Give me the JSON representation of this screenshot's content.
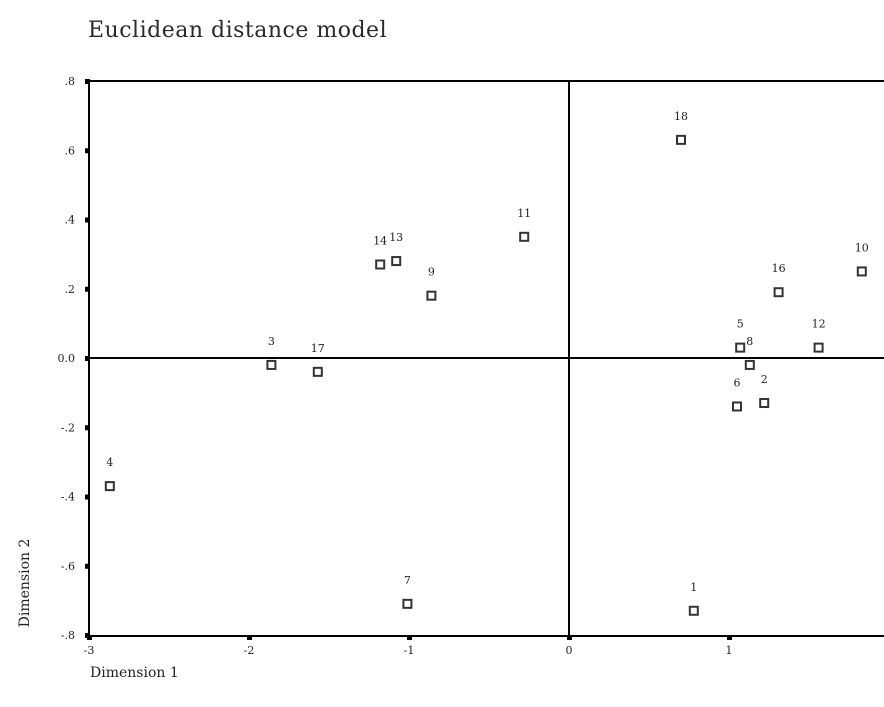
{
  "chart_data": {
    "type": "scatter",
    "title": "Euclidean distance model",
    "xlabel": "Dimension 1",
    "ylabel": "Dimension 2",
    "xlim": [
      -3,
      2
    ],
    "ylim": [
      -0.8,
      0.8
    ],
    "x_ticks": [
      -3,
      -2,
      -1,
      0,
      1
    ],
    "x_tick_labels": [
      "-3",
      "-2",
      "-1",
      "0",
      "1"
    ],
    "y_ticks": [
      0.8,
      0.6,
      0.4,
      0.2,
      0.0,
      -0.2,
      -0.4,
      -0.6,
      -0.8
    ],
    "y_tick_labels": [
      ".8",
      ".6",
      ".4",
      ".2",
      "0.0",
      "-.2",
      "-.4",
      "-.6",
      "-.8"
    ],
    "grid": false,
    "reference_lines": {
      "x": 0,
      "y": 0
    },
    "marker": "open-square",
    "points": [
      {
        "label": "18",
        "x": 0.7,
        "y": 0.63
      },
      {
        "label": "11",
        "x": -0.28,
        "y": 0.35
      },
      {
        "label": "14",
        "x": -1.18,
        "y": 0.27
      },
      {
        "label": "13",
        "x": -1.08,
        "y": 0.28
      },
      {
        "label": "9",
        "x": -0.86,
        "y": 0.18
      },
      {
        "label": "10",
        "x": 1.83,
        "y": 0.25
      },
      {
        "label": "16",
        "x": 1.31,
        "y": 0.19
      },
      {
        "label": "5",
        "x": 1.07,
        "y": 0.03
      },
      {
        "label": "8",
        "x": 1.13,
        "y": -0.02
      },
      {
        "label": "12",
        "x": 1.56,
        "y": 0.03
      },
      {
        "label": "6",
        "x": 1.05,
        "y": -0.14
      },
      {
        "label": "2",
        "x": 1.22,
        "y": -0.13
      },
      {
        "label": "3",
        "x": -1.86,
        "y": -0.02
      },
      {
        "label": "17",
        "x": -1.57,
        "y": -0.04
      },
      {
        "label": "4",
        "x": -2.87,
        "y": -0.37
      },
      {
        "label": "7",
        "x": -1.01,
        "y": -0.71
      },
      {
        "label": "1",
        "x": 0.78,
        "y": -0.73
      }
    ]
  }
}
